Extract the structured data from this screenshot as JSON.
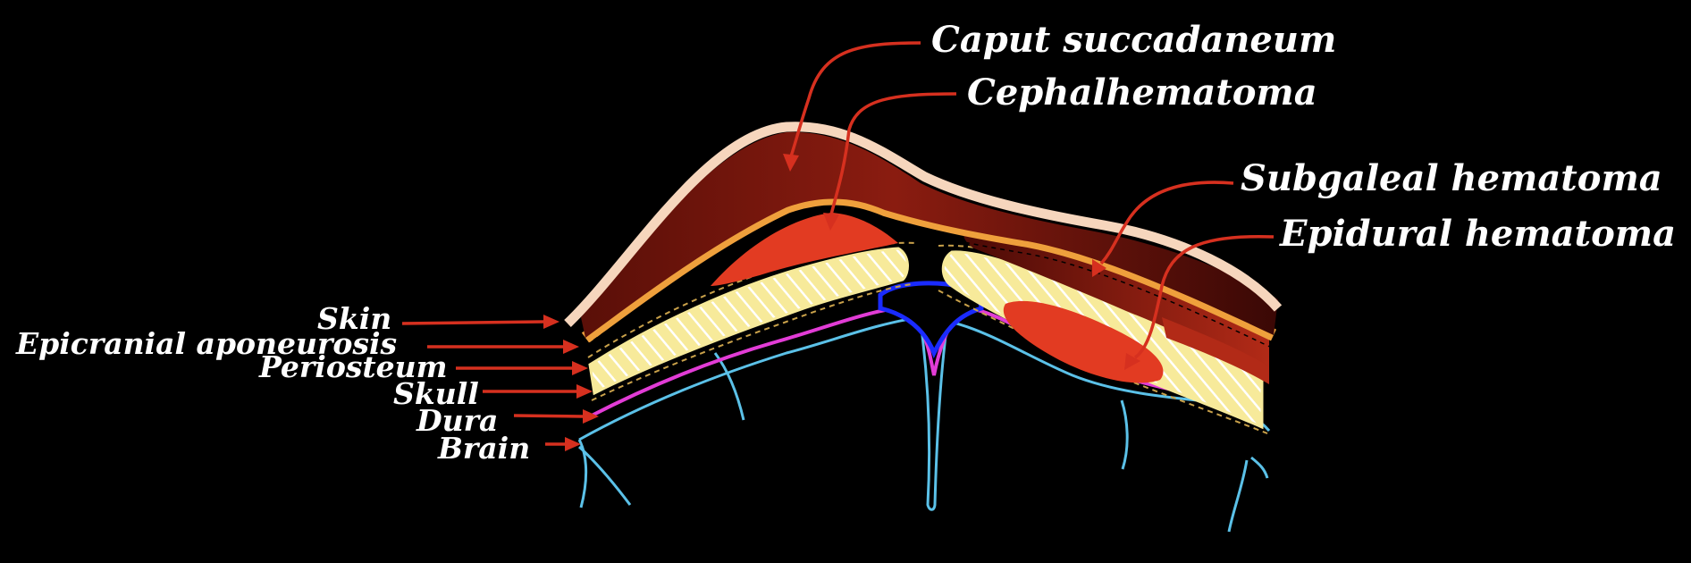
{
  "labels": {
    "caput_succadaneum": "Caput succadaneum",
    "cephalhematoma": "Cephalhematoma",
    "subgaleal_hematoma": "Subgaleal hematoma",
    "epidural_hematoma": "Epidural hematoma",
    "skin": "Skin",
    "epicranial_aponeurosis": "Epicranial aponeurosis",
    "periosteum": "Periosteum",
    "skull": "Skull",
    "dura": "Dura",
    "brain": "Brain"
  },
  "colors": {
    "background": "#000000",
    "arrow": "#d6301f",
    "skin": "#f6d6bd",
    "aponeurosis": "#efa03c",
    "caput": "#8a1c10",
    "hematoma": "#e23b22",
    "skull": "#f7ea9a",
    "dura": "#e23cd6",
    "brain": "#5bc1e8",
    "sinus": "#1a2bff"
  }
}
